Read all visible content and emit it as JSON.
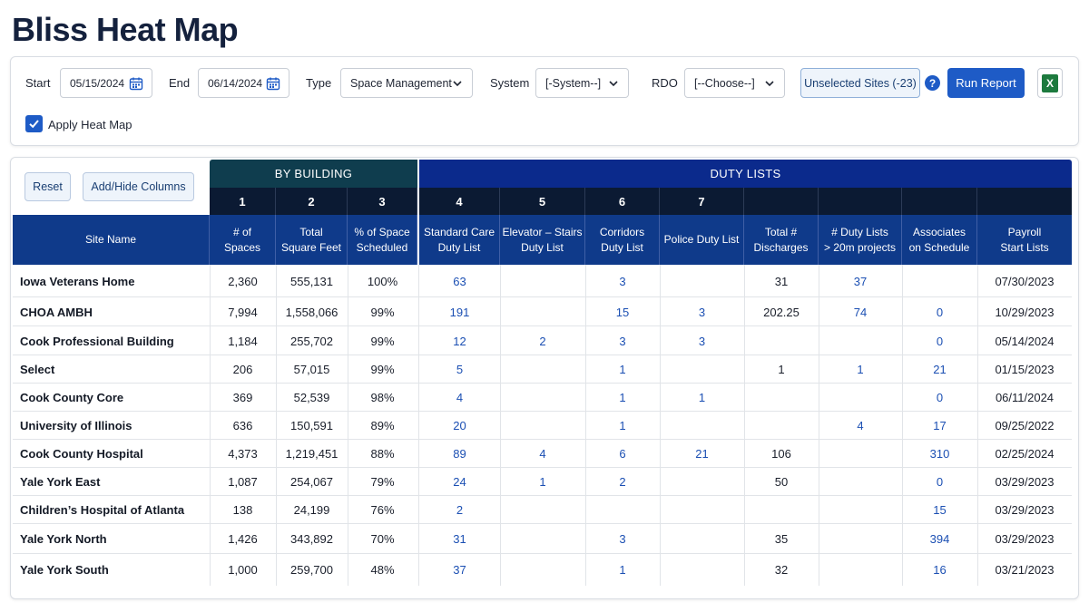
{
  "page_title": "Bliss Heat Map",
  "filters": {
    "start_label": "Start",
    "start_value": "05/15/2024",
    "end_label": "End",
    "end_value": "06/14/2024",
    "type_label": "Type",
    "type_value": "Space Management",
    "system_label": "System",
    "system_value": "[-System--]",
    "rdo_label": "RDO",
    "rdo_value": "[--Choose--]",
    "unselected_sites_label": "Unselected Sites (-23)",
    "help_symbol": "?",
    "run_report_label": "Run Report",
    "excel_letter": "X",
    "apply_heat_map_label": "Apply Heat Map",
    "apply_heat_map_checked": true
  },
  "toolbar": {
    "reset_label": "Reset",
    "add_hide_columns_label": "Add/Hide Columns"
  },
  "column_groups": {
    "by_building": "BY BUILDING",
    "duty_lists": "DUTY LISTS"
  },
  "column_numbers": [
    "1",
    "2",
    "3",
    "4",
    "5",
    "6",
    "7"
  ],
  "columns": {
    "site_name": "Site Name",
    "spaces_1": "# of",
    "spaces_2": "Spaces",
    "sqft_1": "Total",
    "sqft_2": "Square Feet",
    "pct_1": "% of Space",
    "pct_2": "Scheduled",
    "std_1": "Standard Care",
    "std_2": "Duty List",
    "elev_1": "Elevator – Stairs",
    "elev_2": "Duty List",
    "corr_1": "Corridors",
    "corr_2": "Duty List",
    "police": "Police Duty List",
    "disc_1": "Total #",
    "disc_2": "Discharges",
    "dl20_1": "# Duty Lists",
    "dl20_2": "> 20m projects",
    "assoc_1": "Associates",
    "assoc_2": "on Schedule",
    "payroll_1": "Payroll",
    "payroll_2": "Start Lists"
  },
  "rows": [
    {
      "site": "Iowa Veterans Home",
      "spaces": "2,360",
      "sqft": "555,131",
      "pct": "100%",
      "std": "63",
      "elev": "",
      "corr": "3",
      "police": "",
      "disc": "31",
      "dl20": "37",
      "assoc": "",
      "payroll": "07/30/2023"
    },
    {
      "site": "CHOA AMBH",
      "spaces": "7,994",
      "sqft": "1,558,066",
      "pct": "99%",
      "std": "191",
      "elev": "",
      "corr": "15",
      "police": "3",
      "disc": "202.25",
      "dl20": "74",
      "assoc": "0",
      "payroll": "10/29/2023"
    },
    {
      "site": "Cook Professional Building",
      "spaces": "1,184",
      "sqft": "255,702",
      "pct": "99%",
      "std": "12",
      "elev": "2",
      "corr": "3",
      "police": "3",
      "disc": "",
      "dl20": "",
      "assoc": "0",
      "payroll": "05/14/2024"
    },
    {
      "site": "Select",
      "spaces": "206",
      "sqft": "57,015",
      "pct": "99%",
      "std": "5",
      "elev": "",
      "corr": "1",
      "police": "",
      "disc": "1",
      "dl20": "1",
      "assoc": "21",
      "payroll": "01/15/2023"
    },
    {
      "site": "Cook County Core",
      "spaces": "369",
      "sqft": "52,539",
      "pct": "98%",
      "std": "4",
      "elev": "",
      "corr": "1",
      "police": "1",
      "disc": "",
      "dl20": "",
      "assoc": "0",
      "payroll": "06/11/2024"
    },
    {
      "site": "University of Illinois",
      "spaces": "636",
      "sqft": "150,591",
      "pct": "89%",
      "std": "20",
      "elev": "",
      "corr": "1",
      "police": "",
      "disc": "",
      "dl20": "4",
      "assoc": "17",
      "payroll": "09/25/2022"
    },
    {
      "site": "Cook County Hospital",
      "spaces": "4,373",
      "sqft": "1,219,451",
      "pct": "88%",
      "std": "89",
      "elev": "4",
      "corr": "6",
      "police": "21",
      "disc": "106",
      "dl20": "",
      "assoc": "310",
      "payroll": "02/25/2024"
    },
    {
      "site": "Yale York East",
      "spaces": "1,087",
      "sqft": "254,067",
      "pct": "79%",
      "std": "24",
      "elev": "1",
      "corr": "2",
      "police": "",
      "disc": "50",
      "dl20": "",
      "assoc": "0",
      "payroll": "03/29/2023"
    },
    {
      "site": "Children’s Hospital of Atlanta",
      "spaces": "138",
      "sqft": "24,199",
      "pct": "76%",
      "std": "2",
      "elev": "",
      "corr": "",
      "police": "",
      "disc": "",
      "dl20": "",
      "assoc": "15",
      "payroll": "03/29/2023"
    },
    {
      "site": "Yale York North",
      "spaces": "1,426",
      "sqft": "343,892",
      "pct": "70%",
      "std": "31",
      "elev": "",
      "corr": "3",
      "police": "",
      "disc": "35",
      "dl20": "",
      "assoc": "394",
      "payroll": "03/29/2023"
    },
    {
      "site": "Yale York South",
      "spaces": "1,000",
      "sqft": "259,700",
      "pct": "48%",
      "std": "37",
      "elev": "",
      "corr": "1",
      "police": "",
      "disc": "32",
      "dl20": "",
      "assoc": "16",
      "payroll": "03/21/2023"
    }
  ],
  "colors": {
    "primary_button": "#1e5bc6",
    "by_building_header": "#0f3d4e",
    "duty_lists_header": "#0b2a8c",
    "column_header": "#0f3a8a",
    "number_header": "#0b1a33",
    "link_text": "#1b4fb3",
    "excel_green": "#1d7a3e"
  },
  "icons": {
    "start_calendar": "calendar-icon",
    "end_calendar": "calendar-icon",
    "dropdown": "chevron-down-icon",
    "help": "question-circle-icon",
    "export": "excel-icon",
    "checkbox": "checkmark-icon"
  }
}
